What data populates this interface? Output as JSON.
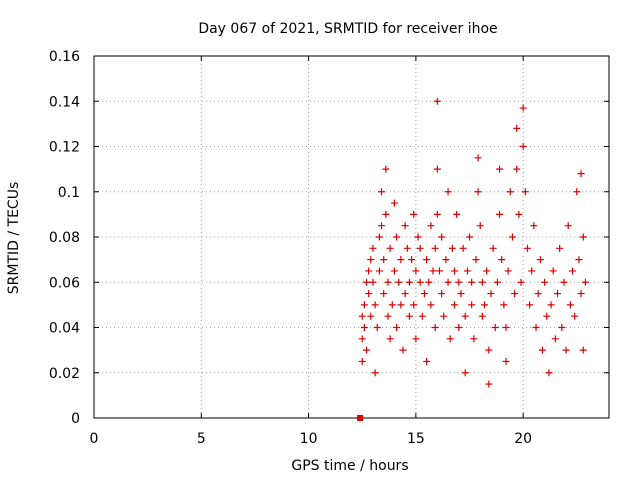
{
  "chart_data": {
    "type": "scatter",
    "title": "Day 067 of 2021, SRMTID for receiver ihoe",
    "xlabel": "GPS time / hours",
    "ylabel": "SRMTID / TECUs",
    "xlim": [
      0,
      24
    ],
    "ylim": [
      0,
      0.16
    ],
    "xticks": [
      "0",
      "5",
      "10",
      "15",
      "20"
    ],
    "xtick_values": [
      0,
      5,
      10,
      15,
      20
    ],
    "yticks": [
      "0",
      "0.02",
      "0.04",
      "0.06",
      "0.08",
      "0.1",
      "0.12",
      "0.14",
      "0.16"
    ],
    "ytick_values": [
      0,
      0.02,
      0.04,
      0.06,
      0.08,
      0.1,
      0.12,
      0.14,
      0.16
    ],
    "grid": true,
    "marker": "+",
    "color": "#dd0000",
    "zero_marker": {
      "x": 12.4,
      "y": 0,
      "shape": "square"
    },
    "series": [
      {
        "name": "SRMTID",
        "points": [
          [
            12.5,
            0.025
          ],
          [
            12.5,
            0.035
          ],
          [
            12.5,
            0.045
          ],
          [
            12.6,
            0.05
          ],
          [
            12.6,
            0.04
          ],
          [
            12.7,
            0.06
          ],
          [
            12.7,
            0.03
          ],
          [
            12.8,
            0.055
          ],
          [
            12.8,
            0.065
          ],
          [
            12.9,
            0.07
          ],
          [
            12.9,
            0.045
          ],
          [
            13.0,
            0.06
          ],
          [
            13.0,
            0.075
          ],
          [
            13.1,
            0.02
          ],
          [
            13.1,
            0.05
          ],
          [
            13.2,
            0.04
          ],
          [
            13.3,
            0.065
          ],
          [
            13.3,
            0.08
          ],
          [
            13.4,
            0.1
          ],
          [
            13.4,
            0.085
          ],
          [
            13.5,
            0.07
          ],
          [
            13.5,
            0.055
          ],
          [
            13.6,
            0.11
          ],
          [
            13.6,
            0.09
          ],
          [
            13.7,
            0.06
          ],
          [
            13.7,
            0.045
          ],
          [
            13.8,
            0.075
          ],
          [
            13.8,
            0.035
          ],
          [
            13.9,
            0.05
          ],
          [
            14.0,
            0.095
          ],
          [
            14.0,
            0.065
          ],
          [
            14.1,
            0.04
          ],
          [
            14.1,
            0.08
          ],
          [
            14.2,
            0.06
          ],
          [
            14.3,
            0.05
          ],
          [
            14.3,
            0.07
          ],
          [
            14.4,
            0.03
          ],
          [
            14.5,
            0.055
          ],
          [
            14.5,
            0.085
          ],
          [
            14.6,
            0.075
          ],
          [
            14.7,
            0.06
          ],
          [
            14.7,
            0.045
          ],
          [
            14.8,
            0.07
          ],
          [
            14.9,
            0.09
          ],
          [
            14.9,
            0.05
          ],
          [
            15.0,
            0.065
          ],
          [
            15.0,
            0.035
          ],
          [
            15.1,
            0.08
          ],
          [
            15.2,
            0.06
          ],
          [
            15.2,
            0.075
          ],
          [
            15.3,
            0.045
          ],
          [
            15.4,
            0.055
          ],
          [
            15.5,
            0.07
          ],
          [
            15.5,
            0.025
          ],
          [
            15.6,
            0.06
          ],
          [
            15.7,
            0.085
          ],
          [
            15.7,
            0.05
          ],
          [
            15.8,
            0.065
          ],
          [
            15.9,
            0.04
          ],
          [
            15.9,
            0.075
          ],
          [
            16.0,
            0.14
          ],
          [
            16.0,
            0.11
          ],
          [
            16.0,
            0.09
          ],
          [
            16.1,
            0.065
          ],
          [
            16.2,
            0.055
          ],
          [
            16.2,
            0.08
          ],
          [
            16.3,
            0.045
          ],
          [
            16.4,
            0.07
          ],
          [
            16.5,
            0.1
          ],
          [
            16.5,
            0.06
          ],
          [
            16.6,
            0.035
          ],
          [
            16.7,
            0.075
          ],
          [
            16.8,
            0.05
          ],
          [
            16.8,
            0.065
          ],
          [
            16.9,
            0.09
          ],
          [
            17.0,
            0.04
          ],
          [
            17.0,
            0.06
          ],
          [
            17.1,
            0.055
          ],
          [
            17.2,
            0.075
          ],
          [
            17.3,
            0.02
          ],
          [
            17.3,
            0.045
          ],
          [
            17.4,
            0.065
          ],
          [
            17.5,
            0.08
          ],
          [
            17.6,
            0.06
          ],
          [
            17.6,
            0.05
          ],
          [
            17.7,
            0.035
          ],
          [
            17.8,
            0.07
          ],
          [
            17.9,
            0.115
          ],
          [
            17.9,
            0.1
          ],
          [
            18.0,
            0.085
          ],
          [
            18.1,
            0.06
          ],
          [
            18.1,
            0.045
          ],
          [
            18.2,
            0.05
          ],
          [
            18.3,
            0.065
          ],
          [
            18.4,
            0.015
          ],
          [
            18.4,
            0.03
          ],
          [
            18.5,
            0.055
          ],
          [
            18.6,
            0.075
          ],
          [
            18.7,
            0.04
          ],
          [
            18.8,
            0.06
          ],
          [
            18.9,
            0.11
          ],
          [
            18.9,
            0.09
          ],
          [
            19.0,
            0.07
          ],
          [
            19.1,
            0.05
          ],
          [
            19.2,
            0.025
          ],
          [
            19.2,
            0.04
          ],
          [
            19.3,
            0.065
          ],
          [
            19.4,
            0.1
          ],
          [
            19.5,
            0.08
          ],
          [
            19.6,
            0.055
          ],
          [
            19.7,
            0.128
          ],
          [
            19.7,
            0.11
          ],
          [
            19.8,
            0.09
          ],
          [
            19.9,
            0.06
          ],
          [
            20.0,
            0.137
          ],
          [
            20.0,
            0.12
          ],
          [
            20.1,
            0.1
          ],
          [
            20.2,
            0.075
          ],
          [
            20.3,
            0.05
          ],
          [
            20.4,
            0.065
          ],
          [
            20.5,
            0.085
          ],
          [
            20.6,
            0.04
          ],
          [
            20.7,
            0.055
          ],
          [
            20.8,
            0.07
          ],
          [
            20.9,
            0.03
          ],
          [
            21.0,
            0.06
          ],
          [
            21.1,
            0.045
          ],
          [
            21.2,
            0.02
          ],
          [
            21.3,
            0.05
          ],
          [
            21.4,
            0.065
          ],
          [
            21.5,
            0.035
          ],
          [
            21.6,
            0.055
          ],
          [
            21.7,
            0.075
          ],
          [
            21.8,
            0.04
          ],
          [
            21.9,
            0.06
          ],
          [
            22.0,
            0.03
          ],
          [
            22.1,
            0.085
          ],
          [
            22.2,
            0.05
          ],
          [
            22.3,
            0.065
          ],
          [
            22.4,
            0.045
          ],
          [
            22.5,
            0.1
          ],
          [
            22.6,
            0.07
          ],
          [
            22.7,
            0.108
          ],
          [
            22.7,
            0.055
          ],
          [
            22.8,
            0.08
          ],
          [
            22.8,
            0.03
          ],
          [
            22.9,
            0.06
          ]
        ]
      }
    ]
  }
}
